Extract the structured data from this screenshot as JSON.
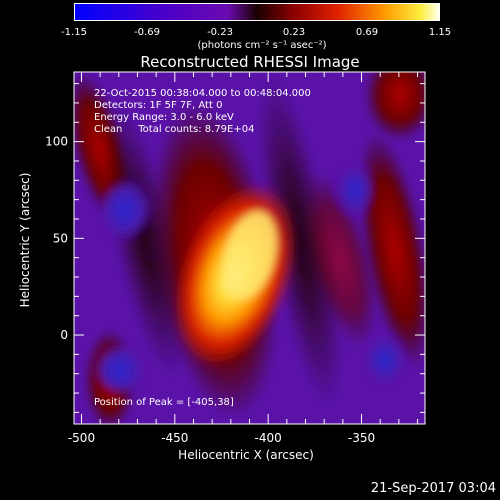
{
  "colorbar": {
    "tick_labels": [
      "-1.15",
      "-0.69",
      "-0.23",
      "0.23",
      "0.69",
      "1.15"
    ],
    "unit_label": "(photons cm⁻² s⁻¹ asec⁻²)",
    "range": [
      -1.15,
      1.15
    ]
  },
  "title": "Reconstructed RHESSI Image",
  "info_lines": [
    "22-Oct-2015 00:38:04.000 to 00:48:04.000",
    "Detectors: 1F 5F 7F, Att 0",
    "Energy Range: 3.0 - 6.0 keV",
    "Clean     Total counts: 8.79E+04"
  ],
  "peak_label": "Position of Peak = [-405,38]",
  "xlabel": "Heliocentric X (arcsec)",
  "ylabel": "Heliocentric Y (arcsec)",
  "datestamp": "21-Sep-2017 03:04",
  "chart_data": {
    "type": "heatmap",
    "title": "Reconstructed RHESSI Image",
    "xlabel": "Heliocentric X (arcsec)",
    "ylabel": "Heliocentric Y (arcsec)",
    "xlim": [
      -504,
      -316
    ],
    "ylim": [
      -46,
      136
    ],
    "x_ticks": [
      -500,
      -450,
      -400,
      -350
    ],
    "x_tick_labels": [
      "-500",
      "-450",
      "-400",
      "-350"
    ],
    "y_ticks": [
      0,
      50,
      100
    ],
    "y_tick_labels": [
      "0",
      "50",
      "100"
    ],
    "value_range": [
      -1.15,
      1.15
    ],
    "peak_position": [
      -405,
      38
    ],
    "colormap": "rainbow-like (blue-purple-red-orange-yellow-white)"
  }
}
